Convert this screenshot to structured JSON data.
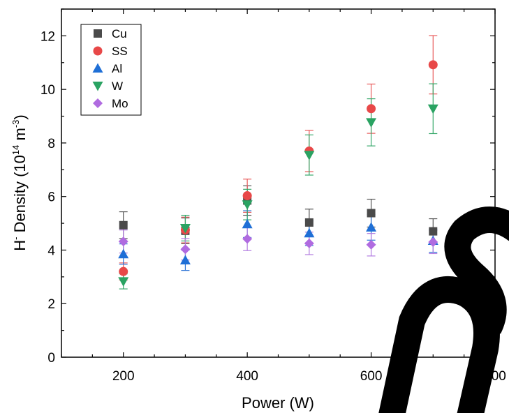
{
  "chart_data": {
    "type": "scatter",
    "xlabel": "Power (W)",
    "ylabel": {
      "base": "H",
      "sup1": "-",
      "mid": " Density (10",
      "sup2": "14",
      "mid2": " m",
      "sup3": "-3",
      "end": ")"
    },
    "xlim": [
      100,
      800
    ],
    "ylim": [
      0,
      13
    ],
    "xticks": [
      200,
      400,
      600,
      800
    ],
    "yticks": [
      0,
      2,
      4,
      6,
      8,
      10,
      12
    ],
    "grid": false,
    "legend_position": "top-left",
    "x": [
      200,
      300,
      400,
      500,
      600,
      700
    ],
    "series": [
      {
        "name": "Cu",
        "marker": "square",
        "color": "#4a4a4a",
        "error_color": "#555555",
        "values": [
          4.93,
          4.72,
          5.85,
          5.03,
          5.38,
          4.7
        ],
        "errors": [
          0.5,
          0.48,
          0.55,
          0.5,
          0.52,
          0.47
        ]
      },
      {
        "name": "SS",
        "marker": "circle",
        "color": "#e84848",
        "error_color": "#e85c5c",
        "values": [
          3.2,
          4.75,
          6.03,
          7.7,
          9.28,
          10.92
        ],
        "errors": [
          0.32,
          0.48,
          0.62,
          0.77,
          0.92,
          1.09
        ]
      },
      {
        "name": "Al",
        "marker": "triangle-up",
        "color": "#1f6fd6",
        "error_color": "#2a73d6",
        "values": [
          3.85,
          3.62,
          4.97,
          4.63,
          4.85,
          4.35
        ],
        "errors": [
          0.38,
          0.38,
          0.5,
          0.46,
          0.48,
          0.43
        ]
      },
      {
        "name": "W",
        "marker": "triangle-down",
        "color": "#2aa362",
        "error_color": "#36a86a",
        "values": [
          2.83,
          4.82,
          5.7,
          7.55,
          8.77,
          9.28
        ],
        "errors": [
          0.28,
          0.48,
          0.57,
          0.75,
          0.88,
          0.93
        ]
      },
      {
        "name": "Mo",
        "marker": "diamond",
        "color": "#b06be0",
        "error_color": "#b27ce0",
        "values": [
          4.32,
          4.03,
          4.42,
          4.25,
          4.2,
          4.3
        ],
        "errors": [
          0.43,
          0.4,
          0.44,
          0.42,
          0.42,
          0.43
        ]
      }
    ]
  }
}
